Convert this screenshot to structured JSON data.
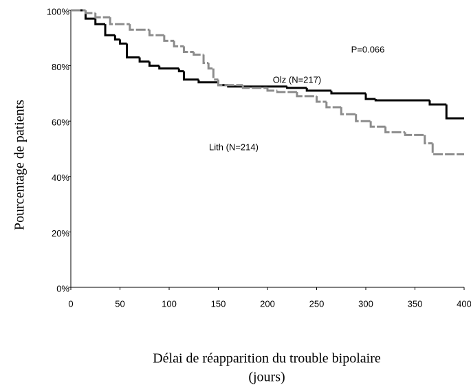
{
  "chart_data": {
    "type": "step",
    "xlabel": [
      "Délai de réapparition du trouble bipolaire",
      "(jours)"
    ],
    "ylabel": "Pourcentage de patients",
    "annotations": [
      "P=0.066",
      "Olz (N=217)",
      "Lith (N=214)"
    ],
    "xlim": [
      0,
      400
    ],
    "ylim": [
      0,
      100
    ],
    "xticks": [
      0,
      50,
      100,
      150,
      200,
      250,
      300,
      350,
      400
    ],
    "yticks": [
      {
        "value": 0,
        "label": "0%"
      },
      {
        "value": 20,
        "label": "20%"
      },
      {
        "value": 40,
        "label": "40%"
      },
      {
        "value": 60,
        "label": "60%"
      },
      {
        "value": 80,
        "label": "80%"
      },
      {
        "value": 100,
        "label": "100%"
      }
    ],
    "series": [
      {
        "name": "Olz",
        "color": "#000000",
        "x": [
          0,
          15,
          25,
          35,
          45,
          50,
          57,
          70,
          80,
          90,
          110,
          115,
          130,
          150,
          160,
          220,
          240,
          265,
          300,
          310,
          365,
          382,
          400
        ],
        "values": [
          100,
          97,
          95,
          91,
          89.5,
          88,
          83,
          81.5,
          80,
          79,
          78,
          75,
          74,
          73,
          72.5,
          72,
          71,
          70,
          68,
          67.5,
          66,
          61,
          61
        ]
      },
      {
        "name": "Lith",
        "color": "#8c8c8c",
        "x": [
          0,
          15,
          25,
          40,
          60,
          80,
          95,
          105,
          115,
          125,
          135,
          140,
          145,
          150,
          175,
          200,
          210,
          230,
          250,
          260,
          275,
          290,
          305,
          320,
          340,
          360,
          368,
          400
        ],
        "values": [
          100,
          99,
          97.5,
          95,
          93,
          91,
          89,
          87,
          85,
          84,
          81,
          79,
          75,
          73,
          72,
          71,
          70.5,
          69,
          67,
          65,
          62.5,
          60,
          58,
          56,
          55,
          52,
          48,
          48
        ]
      }
    ]
  }
}
